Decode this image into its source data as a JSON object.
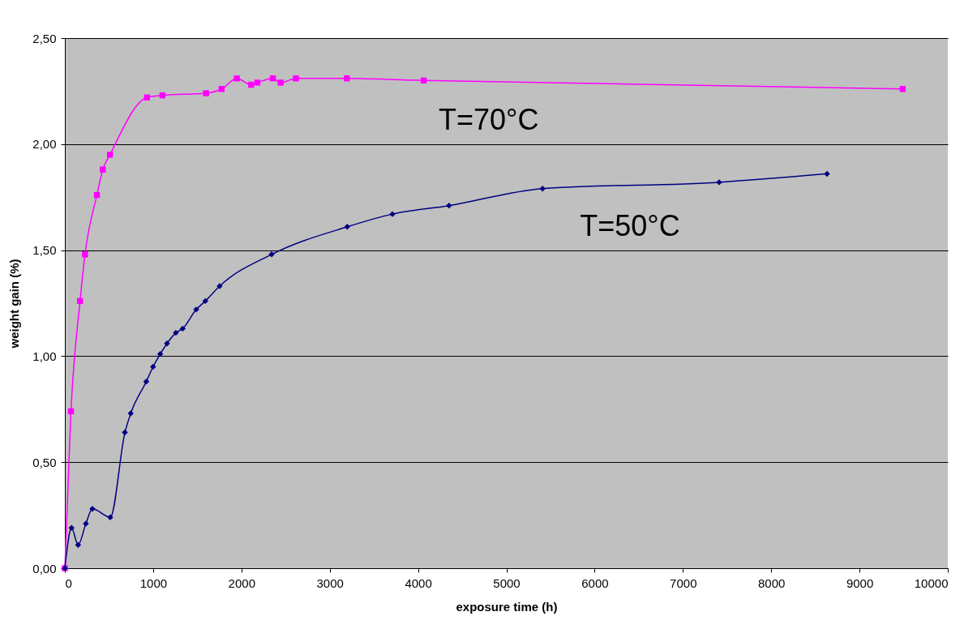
{
  "chart_data": {
    "type": "line",
    "xlabel": "exposure time (h)",
    "ylabel": "weight gain (%)",
    "xlim": [
      0,
      10000
    ],
    "xticks": [
      0,
      1000,
      2000,
      3000,
      4000,
      5000,
      6000,
      7000,
      8000,
      9000,
      10000
    ],
    "ylim": [
      0,
      2.5
    ],
    "yticks": [
      {
        "value": 0,
        "label": "0,00"
      },
      {
        "value": 0.5,
        "label": "0,50"
      },
      {
        "value": 1,
        "label": "1,00"
      },
      {
        "value": 1.5,
        "label": "1,50"
      },
      {
        "value": 2,
        "label": "2,00"
      },
      {
        "value": 2.5,
        "label": "2,50"
      }
    ],
    "grid": "y",
    "series": [
      {
        "color": "#ff00ff",
        "marker": "square",
        "x": [
          0,
          69,
          172,
          228,
          363,
          430,
          511,
          930,
          1106,
          1599,
          1775,
          1948,
          2109,
          2180,
          2356,
          2444,
          2617,
          3193,
          4064,
          9489
        ],
        "values": [
          0,
          0.74,
          1.26,
          1.48,
          1.76,
          1.88,
          1.95,
          2.22,
          2.23,
          2.24,
          2.26,
          2.31,
          2.28,
          2.29,
          2.31,
          2.29,
          2.31,
          2.31,
          2.3,
          2.26
        ]
      },
      {
        "color": "#000080",
        "marker": "diamond",
        "x": [
          0,
          76,
          150,
          238,
          312,
          514,
          680,
          746,
          922,
          999,
          1080,
          1157,
          1257,
          1334,
          1488,
          1591,
          1753,
          2342,
          3198,
          3710,
          4350,
          5410,
          7411,
          8632
        ],
        "values": [
          0,
          0.19,
          0.11,
          0.21,
          0.28,
          0.24,
          0.64,
          0.73,
          0.88,
          0.95,
          1.01,
          1.06,
          1.11,
          1.13,
          1.22,
          1.26,
          1.33,
          1.48,
          1.61,
          1.67,
          1.71,
          1.79,
          1.82,
          1.86
        ]
      }
    ],
    "annotations": [
      "T=70°C",
      "T=50°C"
    ]
  }
}
